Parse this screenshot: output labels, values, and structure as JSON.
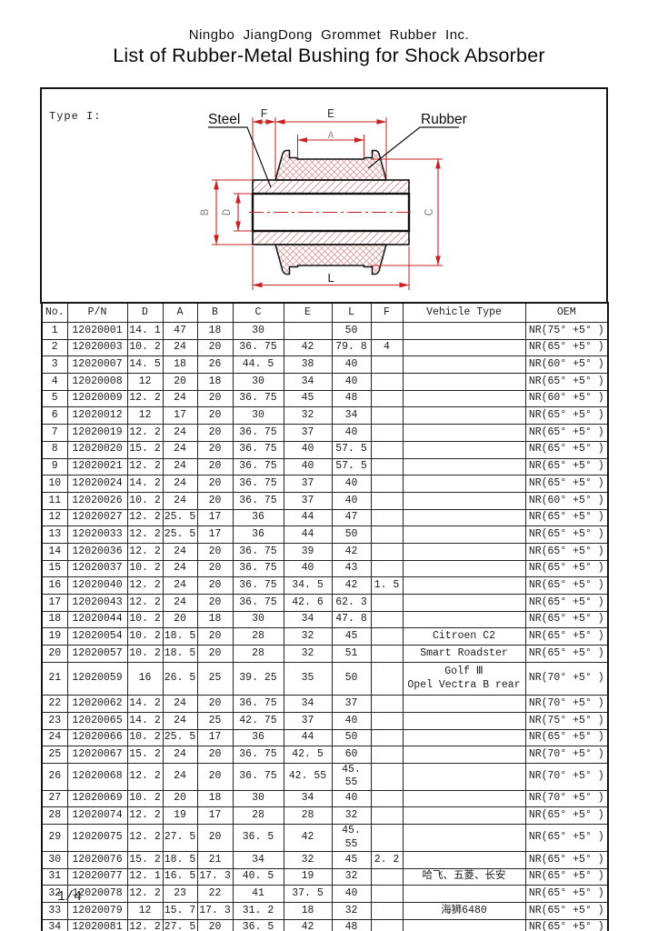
{
  "page": {
    "company": "Ningbo  JiangDong  Grommet  Rubber  Inc.",
    "title": "List of Rubber-Metal Bushing for Shock Absorber",
    "page_number": "1/4"
  },
  "diagram": {
    "type_label": "Type I:",
    "steel_label": "Steel",
    "rubber_label": "Rubber",
    "dims": {
      "f": "F",
      "e": "E",
      "a": "A",
      "b": "B",
      "d": "D",
      "c": "C",
      "l": "L"
    },
    "colors": {
      "dimension_red": "#c52222",
      "hatch_pink": "#dd9a9a",
      "outline": "#111111"
    }
  },
  "table": {
    "columns": [
      "No.",
      "P/N",
      "D",
      "A",
      "B",
      "C",
      "E",
      "L",
      "F",
      "Vehicle Type",
      "OEM"
    ],
    "rows": [
      [
        "1",
        "12020001",
        "14. 1",
        "47",
        "18",
        "30",
        "",
        "50",
        "",
        "",
        "NR(75° +5° )"
      ],
      [
        "2",
        "12020003",
        "10. 2",
        "24",
        "20",
        "36. 75",
        "42",
        "79. 8",
        "4",
        "",
        "NR(65° +5° )"
      ],
      [
        "3",
        "12020007",
        "14. 5",
        "18",
        "26",
        "44. 5",
        "38",
        "40",
        "",
        "",
        "NR(60° +5° )"
      ],
      [
        "4",
        "12020008",
        "12",
        "20",
        "18",
        "30",
        "34",
        "40",
        "",
        "",
        "NR(65° +5° )"
      ],
      [
        "5",
        "12020009",
        "12. 2",
        "24",
        "20",
        "36. 75",
        "45",
        "48",
        "",
        "",
        "NR(60° +5° )"
      ],
      [
        "6",
        "12020012",
        "12",
        "17",
        "20",
        "30",
        "32",
        "34",
        "",
        "",
        "NR(65° +5° )"
      ],
      [
        "7",
        "12020019",
        "12. 2",
        "24",
        "20",
        "36. 75",
        "37",
        "40",
        "",
        "",
        "NR(65° +5° )"
      ],
      [
        "8",
        "12020020",
        "15. 2",
        "24",
        "20",
        "36. 75",
        "40",
        "57. 5",
        "",
        "",
        "NR(65° +5° )"
      ],
      [
        "9",
        "12020021",
        "12. 2",
        "24",
        "20",
        "36. 75",
        "40",
        "57. 5",
        "",
        "",
        "NR(65° +5° )"
      ],
      [
        "10",
        "12020024",
        "14. 2",
        "24",
        "20",
        "36. 75",
        "37",
        "40",
        "",
        "",
        "NR(65° +5° )"
      ],
      [
        "11",
        "12020026",
        "10. 2",
        "24",
        "20",
        "36. 75",
        "37",
        "40",
        "",
        "",
        "NR(60° +5° )"
      ],
      [
        "12",
        "12020027",
        "12. 2",
        "25. 5",
        "17",
        "36",
        "44",
        "47",
        "",
        "",
        "NR(65° +5° )"
      ],
      [
        "13",
        "12020033",
        "12. 2",
        "25. 5",
        "17",
        "36",
        "44",
        "50",
        "",
        "",
        "NR(65° +5° )"
      ],
      [
        "14",
        "12020036",
        "12. 2",
        "24",
        "20",
        "36. 75",
        "39",
        "42",
        "",
        "",
        "NR(65° +5° )"
      ],
      [
        "15",
        "12020037",
        "10. 2",
        "24",
        "20",
        "36. 75",
        "40",
        "43",
        "",
        "",
        "NR(65° +5° )"
      ],
      [
        "16",
        "12020040",
        "12. 2",
        "24",
        "20",
        "36. 75",
        "34. 5",
        "42",
        "1. 5",
        "",
        "NR(65° +5° )"
      ],
      [
        "17",
        "12020043",
        "12. 2",
        "24",
        "20",
        "36. 75",
        "42. 6",
        "62. 3",
        "",
        "",
        "NR(65° +5° )"
      ],
      [
        "18",
        "12020044",
        "10. 2",
        "20",
        "18",
        "30",
        "34",
        "47. 8",
        "",
        "",
        "NR(65° +5° )"
      ],
      [
        "19",
        "12020054",
        "10. 2",
        "18. 5",
        "20",
        "28",
        "32",
        "45",
        "",
        "Citroen C2",
        "NR(65° +5° )"
      ],
      [
        "20",
        "12020057",
        "10. 2",
        "18. 5",
        "20",
        "28",
        "32",
        "51",
        "",
        "Smart Roadster",
        "NR(65° +5° )"
      ],
      [
        "21",
        "12020059",
        "16",
        "26. 5",
        "25",
        "39. 25",
        "35",
        "50",
        "",
        "Golf Ⅲ\nOpel Vectra B rear",
        "NR(70° +5° )"
      ],
      [
        "22",
        "12020062",
        "14. 2",
        "24",
        "20",
        "36. 75",
        "34",
        "37",
        "",
        "",
        "NR(70° +5° )"
      ],
      [
        "23",
        "12020065",
        "14. 2",
        "24",
        "25",
        "42. 75",
        "37",
        "40",
        "",
        "",
        "NR(75° +5° )"
      ],
      [
        "24",
        "12020066",
        "10. 2",
        "25. 5",
        "17",
        "36",
        "44",
        "50",
        "",
        "",
        "NR(65° +5° )"
      ],
      [
        "25",
        "12020067",
        "15. 2",
        "24",
        "20",
        "36. 75",
        "42. 5",
        "60",
        "",
        "",
        "NR(70° +5° )"
      ],
      [
        "26",
        "12020068",
        "12. 2",
        "24",
        "20",
        "36. 75",
        "42. 55",
        "45. 55",
        "",
        "",
        "NR(70° +5° )"
      ],
      [
        "27",
        "12020069",
        "10. 2",
        "20",
        "18",
        "30",
        "34",
        "40",
        "",
        "",
        "NR(70° +5° )"
      ],
      [
        "28",
        "12020074",
        "12. 2",
        "19",
        "17",
        "28",
        "28",
        "32",
        "",
        "",
        "NR(65° +5° )"
      ],
      [
        "29",
        "12020075",
        "12. 2",
        "27. 5",
        "20",
        "36. 5",
        "42",
        "45. 55",
        "",
        "",
        "NR(65° +5° )"
      ],
      [
        "30",
        "12020076",
        "15. 2",
        "18. 5",
        "21",
        "34",
        "32",
        "45",
        "2. 2",
        "",
        "NR(65° +5° )"
      ],
      [
        "31",
        "12020077",
        "12. 1",
        "16. 5",
        "17. 3",
        "40. 5",
        "19",
        "32",
        "",
        "哈飞、五菱、长安",
        "NR(65° +5° )"
      ],
      [
        "32",
        "12020078",
        "12. 2",
        "23",
        "22",
        "41",
        "37. 5",
        "40",
        "",
        "",
        "NR(65° +5° )"
      ],
      [
        "33",
        "12020079",
        "12",
        "15. 7",
        "17. 3",
        "31. 2",
        "18",
        "32",
        "",
        "海狮6480",
        "NR(65° +5° )"
      ],
      [
        "34",
        "12020081",
        "12. 2",
        "27. 5",
        "20",
        "36. 5",
        "42",
        "48",
        "",
        "",
        "NR(65° +5° )"
      ]
    ]
  }
}
